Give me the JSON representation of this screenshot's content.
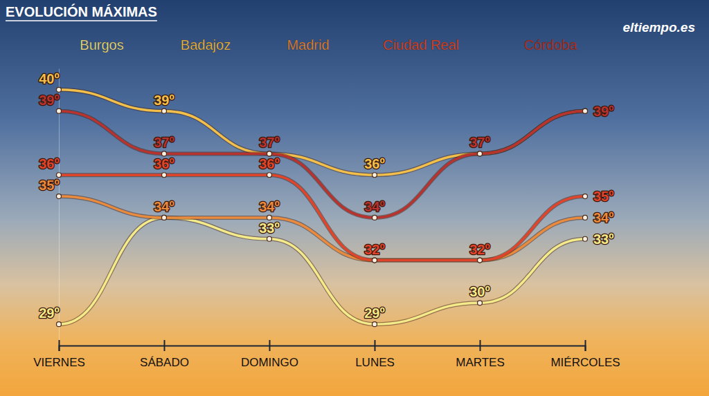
{
  "chart_data": {
    "type": "line",
    "title": "EVOLUCIÓN MÁXIMAS",
    "categories": [
      "VIERNES",
      "SÁBADO",
      "DOMINGO",
      "LUNES",
      "MARTES",
      "MIÉRCOLES"
    ],
    "series": [
      {
        "name": "Burgos",
        "color": "#f3ea8a",
        "values": [
          29,
          34,
          33,
          29,
          30,
          33
        ],
        "value_labels": [
          "29º",
          null,
          "33º",
          "29º",
          "30º",
          "33º"
        ]
      },
      {
        "name": "Badajoz",
        "color": "#f2c04a",
        "values": [
          40,
          39,
          37,
          36,
          37,
          39
        ],
        "value_labels": [
          "40º",
          "39º",
          null,
          "36º",
          null,
          null
        ]
      },
      {
        "name": "Madrid",
        "color": "#ea8a3c",
        "values": [
          35,
          34,
          34,
          32,
          32,
          34
        ],
        "value_labels": [
          "35º",
          "34º",
          "34º",
          null,
          null,
          "34º"
        ]
      },
      {
        "name": "Ciudad Real",
        "color": "#e0452c",
        "values": [
          36,
          36,
          36,
          32,
          32,
          35
        ],
        "value_labels": [
          "36º",
          "36º",
          "36º",
          "32º",
          "32º",
          "35º"
        ]
      },
      {
        "name": "Córdoba",
        "color": "#b8322e",
        "values": [
          39,
          37,
          37,
          34,
          37,
          39
        ],
        "value_labels": [
          "39º",
          "37º",
          "37º",
          "34º",
          "37º",
          "39º"
        ]
      }
    ],
    "ylim": [
      28,
      41
    ],
    "data_labels": true,
    "tick_labels": "x",
    "legend": "top",
    "marker": "circle",
    "annotations": [
      {
        "text": "eltiempo.es"
      }
    ]
  }
}
